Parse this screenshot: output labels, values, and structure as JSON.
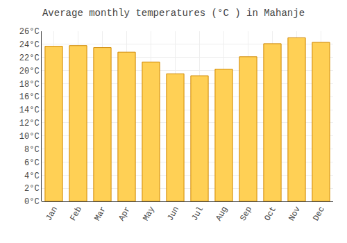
{
  "chart_data": {
    "type": "bar",
    "title": "Average monthly temperatures (°C ) in Mahanje",
    "categories": [
      "Jan",
      "Feb",
      "Mar",
      "Apr",
      "May",
      "Jun",
      "Jul",
      "Aug",
      "Sep",
      "Oct",
      "Nov",
      "Dec"
    ],
    "values": [
      23.7,
      23.8,
      23.5,
      22.8,
      21.3,
      19.5,
      19.2,
      20.2,
      22.1,
      24.1,
      25.0,
      24.3
    ],
    "color": "#FFD055",
    "ylim": [
      0,
      26
    ],
    "yticks": [
      {
        "value": 0,
        "label": "0°C"
      },
      {
        "value": 2,
        "label": "2°C"
      },
      {
        "value": 4,
        "label": "4°C"
      },
      {
        "value": 6,
        "label": "6°C"
      },
      {
        "value": 8,
        "label": "8°C"
      },
      {
        "value": 10,
        "label": "10°C"
      },
      {
        "value": 12,
        "label": "12°C"
      },
      {
        "value": 14,
        "label": "14°C"
      },
      {
        "value": 16,
        "label": "16°C"
      },
      {
        "value": 18,
        "label": "18°C"
      },
      {
        "value": 20,
        "label": "20°C"
      },
      {
        "value": 22,
        "label": "22°C"
      },
      {
        "value": 24,
        "label": "24°C"
      },
      {
        "value": 26,
        "label": "26°C"
      }
    ],
    "grid": true
  }
}
